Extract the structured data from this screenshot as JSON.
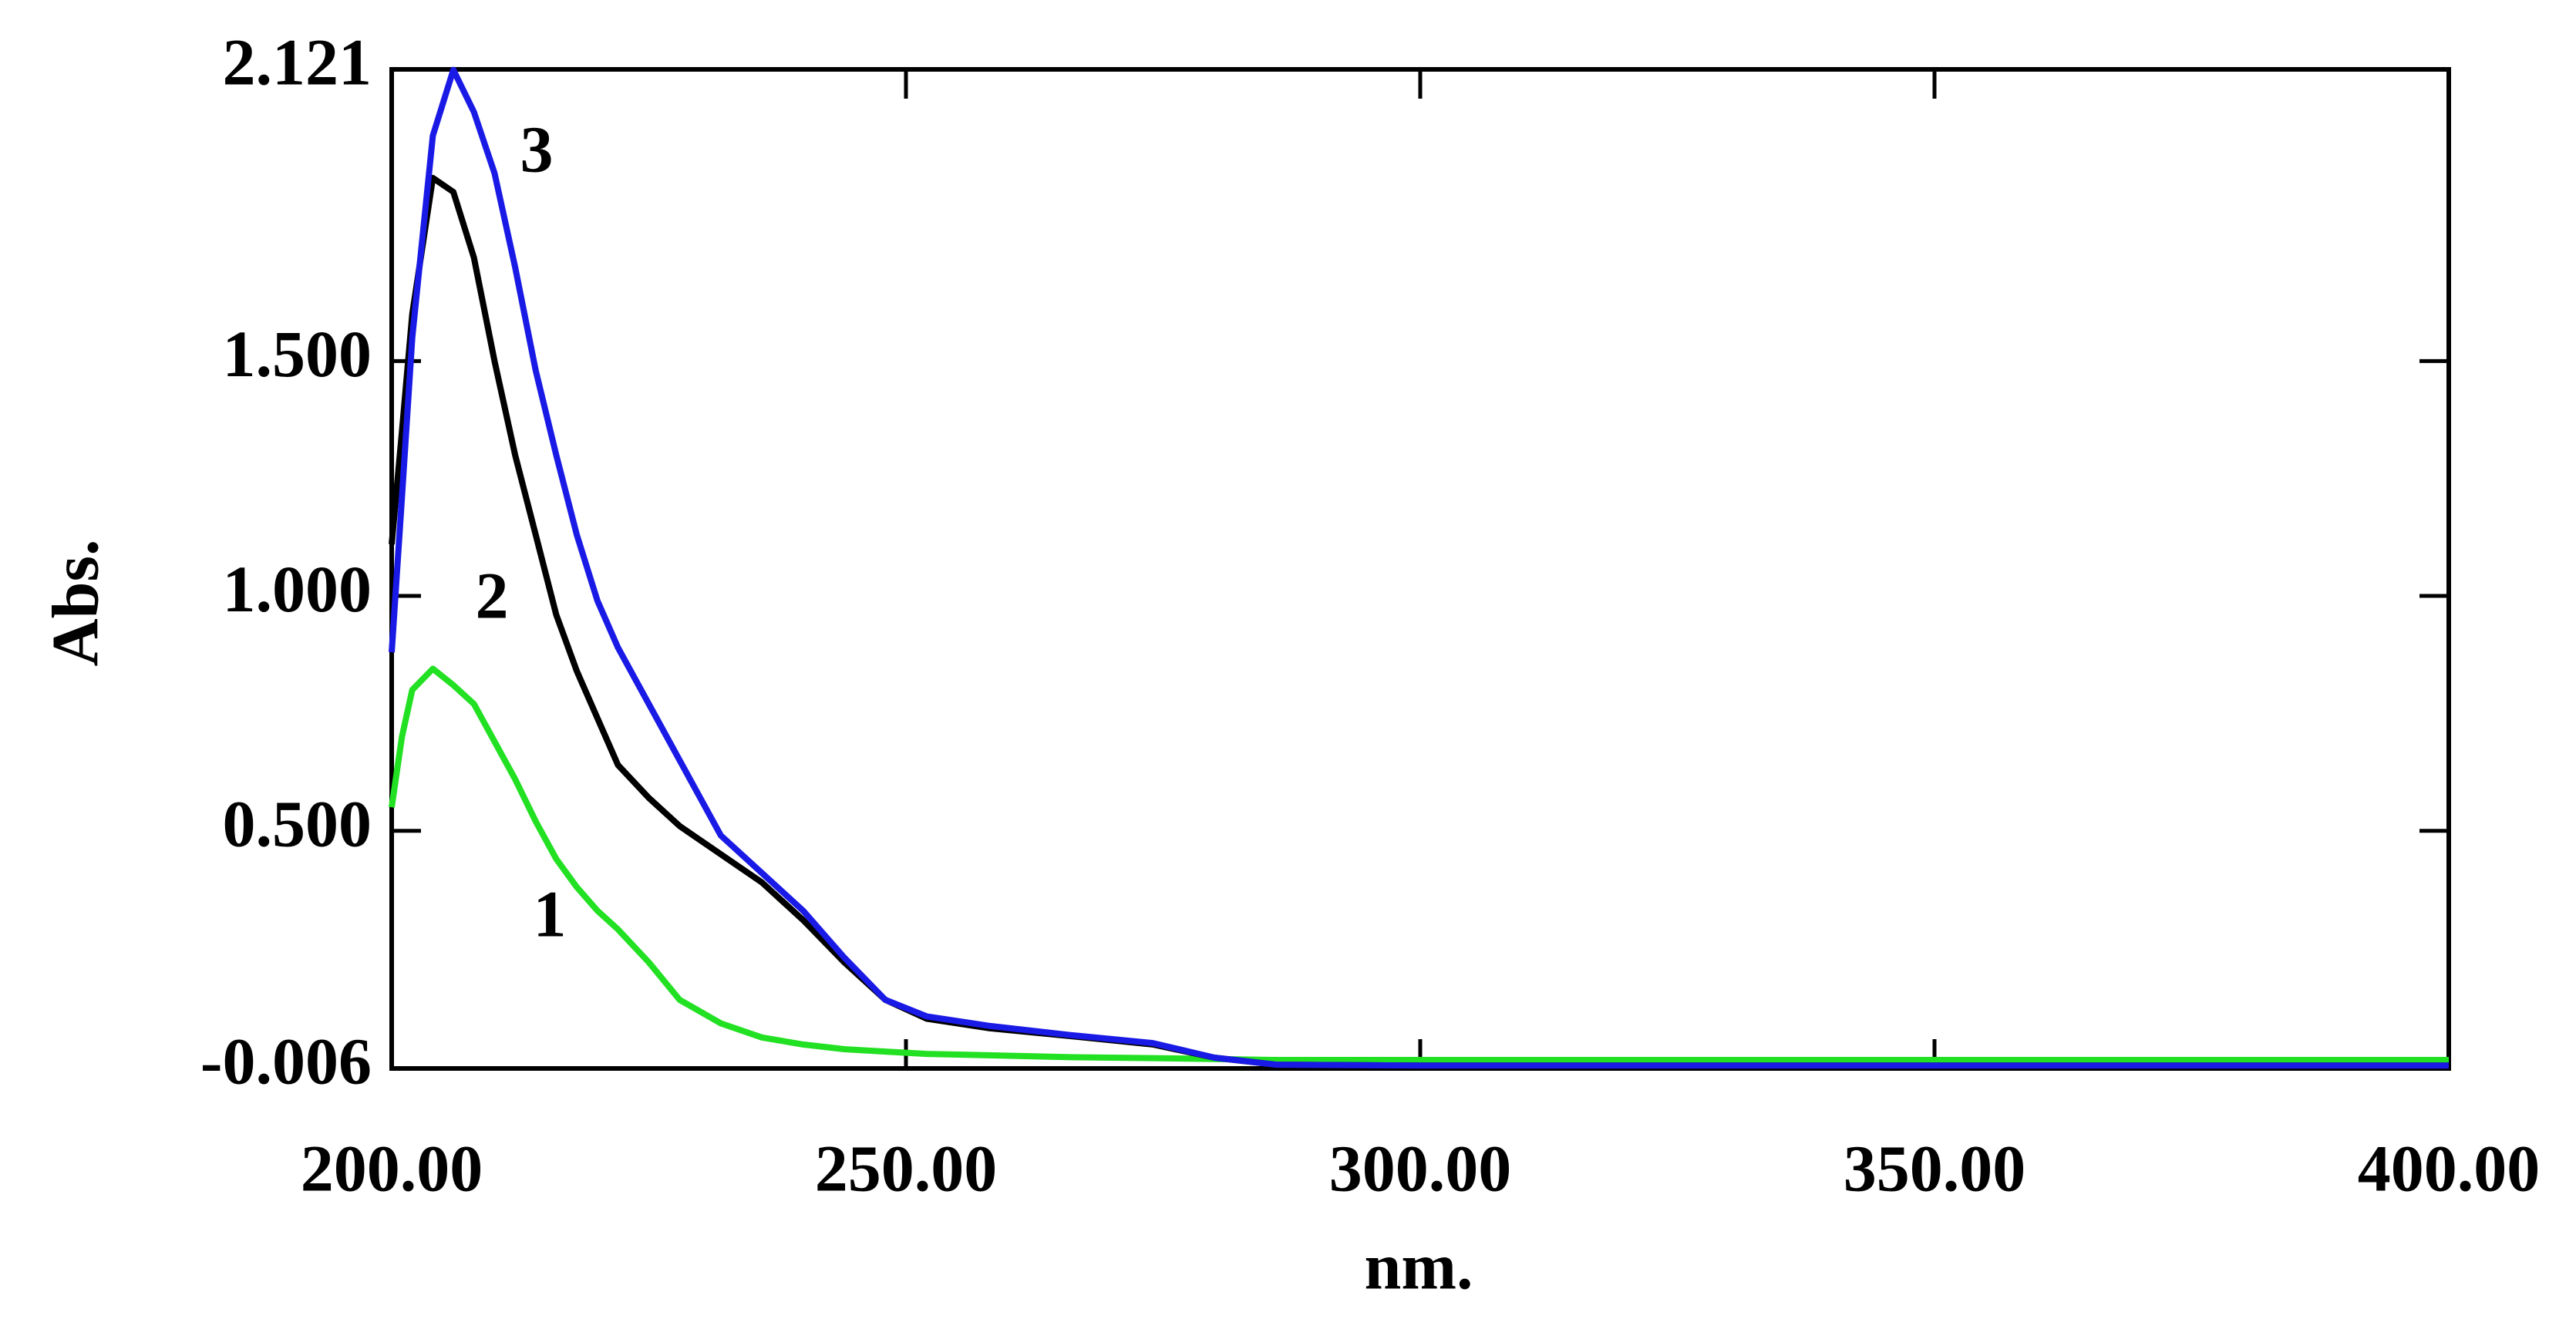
{
  "chart_data": {
    "type": "line",
    "x_label": "nm.",
    "y_label": "Abs.",
    "x": [
      200,
      201,
      202,
      204,
      206,
      208,
      210,
      212,
      214,
      216,
      218,
      220,
      222,
      225,
      228,
      232,
      236,
      240,
      244,
      248,
      252,
      258,
      266,
      274,
      280,
      286,
      300,
      400
    ],
    "series": [
      {
        "name": "1",
        "color": "#22e022",
        "values": [
          0.55,
          0.7,
          0.8,
          0.845,
          0.81,
          0.77,
          0.69,
          0.61,
          0.52,
          0.44,
          0.38,
          0.33,
          0.29,
          0.22,
          0.14,
          0.09,
          0.06,
          0.045,
          0.035,
          0.03,
          0.025,
          0.022,
          0.018,
          0.016,
          0.014,
          0.012,
          0.012,
          0.012
        ]
      },
      {
        "name": "2",
        "color": "#000000",
        "values": [
          1.11,
          1.35,
          1.6,
          1.89,
          1.86,
          1.72,
          1.5,
          1.3,
          1.13,
          0.96,
          0.84,
          0.74,
          0.64,
          0.57,
          0.51,
          0.45,
          0.39,
          0.31,
          0.22,
          0.14,
          0.1,
          0.08,
          0.063,
          0.045,
          0.017,
          0.002,
          0.0,
          0.0
        ]
      },
      {
        "name": "3",
        "color": "#1a1ae6",
        "values": [
          0.88,
          1.21,
          1.55,
          1.98,
          2.12,
          2.03,
          1.9,
          1.7,
          1.48,
          1.3,
          1.13,
          0.99,
          0.89,
          0.77,
          0.65,
          0.49,
          0.41,
          0.33,
          0.23,
          0.14,
          0.105,
          0.085,
          0.065,
          0.048,
          0.017,
          0.002,
          0.0,
          0.0
        ]
      }
    ],
    "xlim": [
      200,
      400
    ],
    "xticks": [
      {
        "value": 200,
        "label": "200.00"
      },
      {
        "value": 250,
        "label": "250.00"
      },
      {
        "value": 300,
        "label": "300.00"
      },
      {
        "value": 350,
        "label": "350.00"
      },
      {
        "value": 400,
        "label": "400.00"
      }
    ],
    "ylim": [
      -0.006,
      2.121
    ],
    "yticks": [
      -0.006,
      {
        "value": 0.5,
        "label": "0.500"
      },
      {
        "value": 1,
        "label": "1.000"
      },
      {
        "value": 1.5,
        "label": "1.500"
      },
      2.121
    ]
  }
}
